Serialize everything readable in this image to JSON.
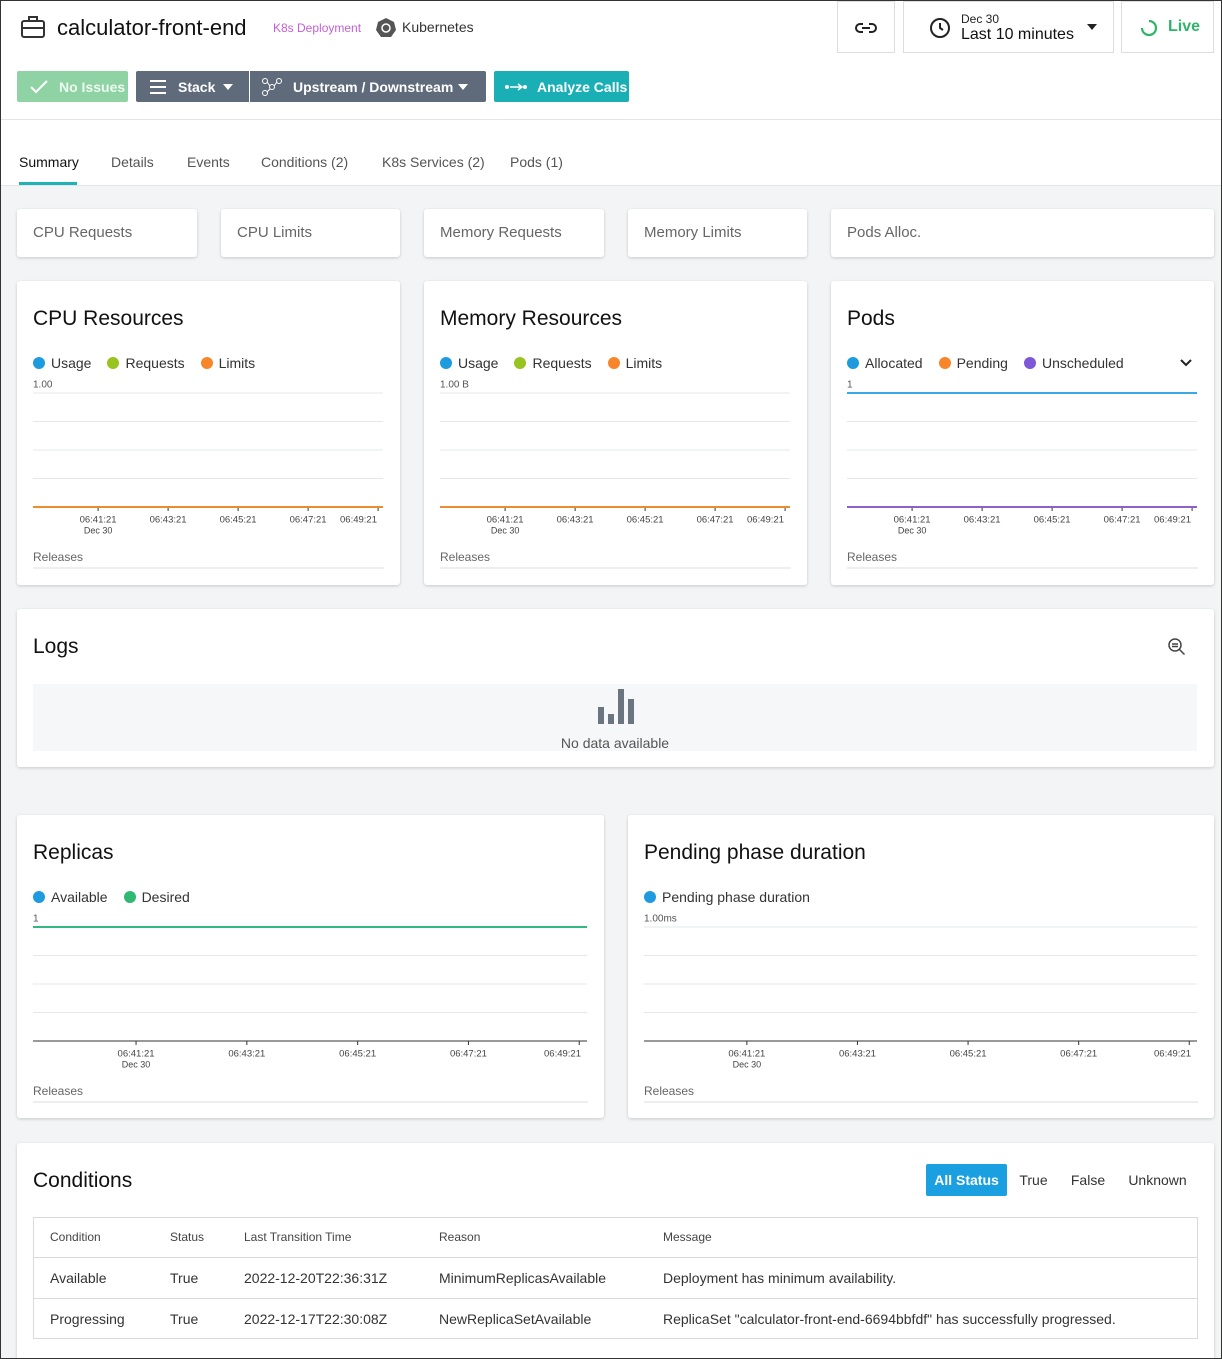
{
  "header": {
    "title": "calculator-front-end",
    "badge": "K8s Deployment",
    "platform": "Kubernetes",
    "date": "Dec 30",
    "time_range": "Last 10 minutes",
    "live": "Live"
  },
  "actions": [
    "No Issues",
    "Stack",
    "Upstream / Downstream",
    "Analyze Calls"
  ],
  "tabs": [
    "Summary",
    "Details",
    "Events",
    "Conditions (2)",
    "K8s Services (2)",
    "Pods (1)"
  ],
  "stat_cards": [
    "CPU Requests",
    "CPU Limits",
    "Memory Requests",
    "Memory Limits",
    "Pods Alloc."
  ],
  "charts": [
    {
      "title": "CPU Resources",
      "series": [
        {
          "name": "Usage",
          "color": "#1e9bde",
          "value": 0
        },
        {
          "name": "Requests",
          "color": "#99c31f",
          "value": 0
        },
        {
          "name": "Limits",
          "color": "#f7862a",
          "value": 0
        }
      ],
      "ylim": [
        0,
        1
      ],
      "ytick": {
        "value": 1,
        "label": "1.00"
      },
      "xticks": [
        "06:41:21",
        "06:43:21",
        "06:45:21",
        "06:47:21",
        "06:49:21"
      ],
      "xtick_sub": "Dec 30",
      "footer": "Releases"
    },
    {
      "title": "Memory Resources",
      "series": [
        {
          "name": "Usage",
          "color": "#1e9bde",
          "value": 0
        },
        {
          "name": "Requests",
          "color": "#99c31f",
          "value": 0
        },
        {
          "name": "Limits",
          "color": "#f7862a",
          "value": 0
        }
      ],
      "ylim": [
        0,
        1
      ],
      "ytick": {
        "value": 1,
        "label": "1.00 B"
      },
      "xticks": [
        "06:41:21",
        "06:43:21",
        "06:45:21",
        "06:47:21",
        "06:49:21"
      ],
      "xtick_sub": "Dec 30",
      "footer": "Releases"
    },
    {
      "title": "Pods",
      "series": [
        {
          "name": "Allocated",
          "color": "#1e9bde",
          "value": 1
        },
        {
          "name": "Pending",
          "color": "#f7862a",
          "value": 0
        },
        {
          "name": "Unscheduled",
          "color": "#7e57d8",
          "value": 0
        }
      ],
      "ylim": [
        0,
        1
      ],
      "ytick": 1,
      "xticks": [
        "06:41:21",
        "06:43:21",
        "06:45:21",
        "06:47:21",
        "06:49:21"
      ],
      "xtick_sub": "Dec 30",
      "footer": "Releases"
    },
    {
      "title": "Replicas",
      "series": [
        {
          "name": "Available",
          "color": "#1e9bde",
          "value": 1
        },
        {
          "name": "Desired",
          "color": "#2eb872",
          "value": 1
        }
      ],
      "ylim": [
        0,
        1
      ],
      "ytick": 1,
      "xticks": [
        "06:41:21",
        "06:43:21",
        "06:45:21",
        "06:47:21",
        "06:49:21"
      ],
      "xtick_sub": "Dec 30",
      "footer": "Releases"
    },
    {
      "title": "Pending phase duration",
      "series": [
        {
          "name": "Pending phase duration",
          "color": "#1e9bde",
          "value": null
        }
      ],
      "ylim": [
        0,
        1
      ],
      "ytick": {
        "value": 1,
        "label": "1.00ms"
      },
      "xticks": [
        "06:41:21",
        "06:43:21",
        "06:45:21",
        "06:47:21",
        "06:49:21"
      ],
      "xtick_sub": "Dec 30",
      "footer": "Releases"
    }
  ],
  "logs": {
    "title": "Logs",
    "empty": "No data available"
  },
  "conditions": {
    "title": "Conditions",
    "filters": [
      "All Status",
      "True",
      "False",
      "Unknown"
    ],
    "columns": [
      "Condition",
      "Status",
      "Last Transition Time",
      "Reason",
      "Message"
    ],
    "rows": [
      [
        "Available",
        "True",
        "2022-12-20T22:36:31Z",
        "MinimumReplicasAvailable",
        "Deployment has minimum availability."
      ],
      [
        "Progressing",
        "True",
        "2022-12-17T22:30:08Z",
        "NewReplicaSetAvailable",
        "ReplicaSet \"calculator-front-end-6694bbfdf\" has successfully progressed."
      ]
    ]
  }
}
